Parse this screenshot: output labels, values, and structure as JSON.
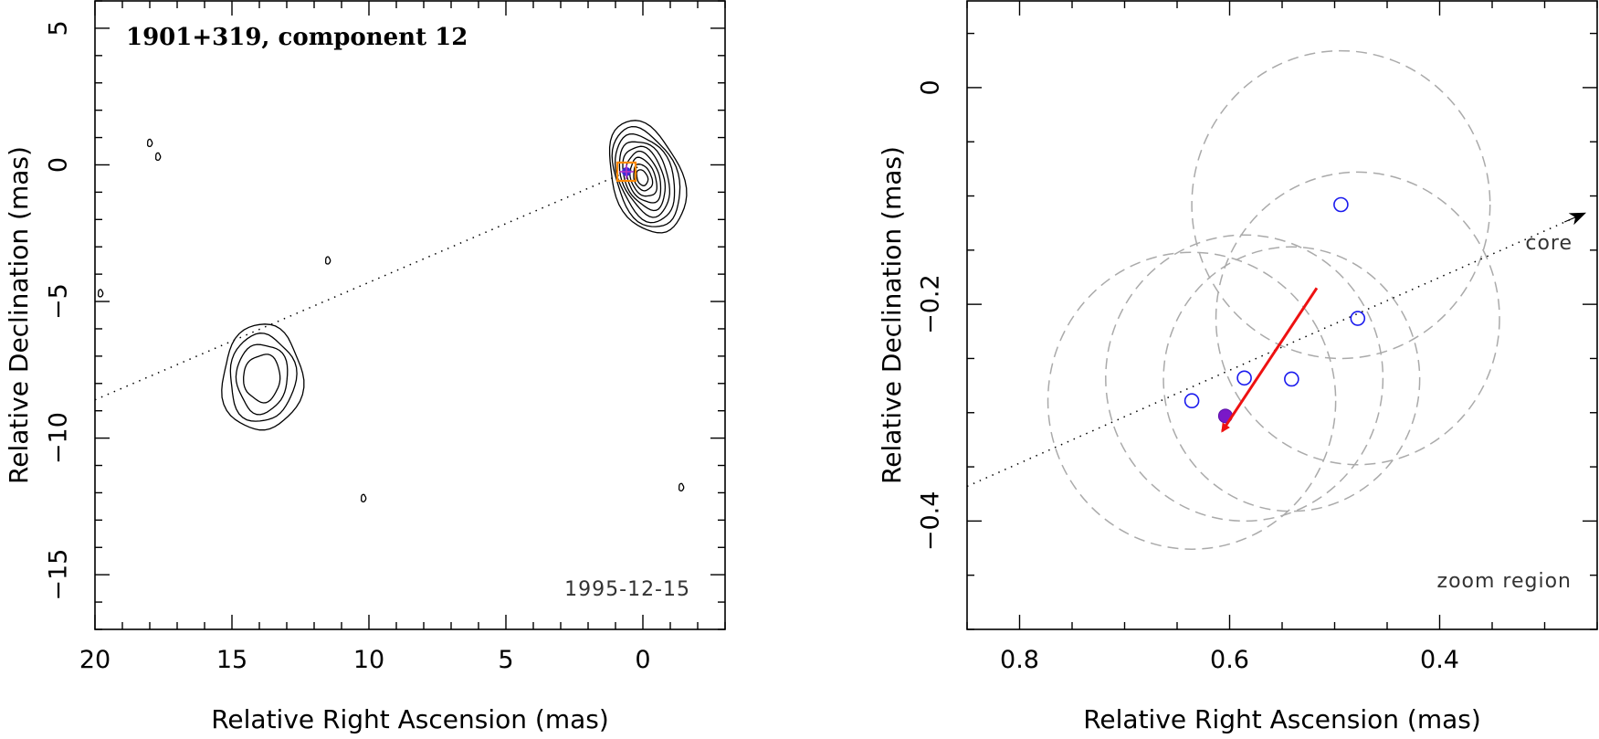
{
  "chart_data": [
    {
      "type": "scatter",
      "subtype": "contour-map",
      "title": "1901+319, component 12",
      "date_label": "1995-12-15",
      "xlabel": "Relative Right Ascension (mas)",
      "ylabel": "Relative Declination (mas)",
      "xlim": [
        20,
        -3
      ],
      "ylim": [
        -17,
        6
      ],
      "xticks": [
        20,
        15,
        10,
        5,
        0
      ],
      "yticks": [
        5,
        0,
        -5,
        -10,
        -15
      ],
      "contour_sources": [
        {
          "name": "core",
          "x": 0.0,
          "y": -0.2
        },
        {
          "name": "component-12-region",
          "x": 13.9,
          "y": -7.8
        }
      ],
      "component_marker": {
        "x": 0.6,
        "y": -0.25
      },
      "jet_axis_line": {
        "from": [
          20,
          -8.6
        ],
        "to": [
          0,
          0
        ]
      }
    },
    {
      "type": "scatter",
      "title": "",
      "note_label": "zoom region",
      "arrow_label": "core",
      "xlabel": "Relative Right Ascension (mas)",
      "ylabel": "Relative Declination (mas)",
      "xlim": [
        0.85,
        0.25
      ],
      "ylim": [
        -0.5,
        0.08
      ],
      "xticks": [
        0.8,
        0.6,
        0.4
      ],
      "yticks": [
        0,
        -0.2,
        -0.4
      ],
      "series": [
        {
          "name": "component positions",
          "x": [
            0.494,
            0.478,
            0.586,
            0.541,
            0.636
          ],
          "y": [
            -0.108,
            -0.213,
            -0.268,
            -0.269,
            -0.289
          ]
        },
        {
          "name": "mean position",
          "x": [
            0.604
          ],
          "y": [
            -0.303
          ]
        }
      ],
      "uncertainty_circles": [
        {
          "x": 0.494,
          "y": -0.108,
          "r": 0.142
        },
        {
          "x": 0.478,
          "y": -0.213,
          "r": 0.135
        },
        {
          "x": 0.586,
          "y": -0.268,
          "r": 0.132
        },
        {
          "x": 0.541,
          "y": -0.269,
          "r": 0.122
        },
        {
          "x": 0.636,
          "y": -0.289,
          "r": 0.137
        }
      ],
      "motion_vector": {
        "from": [
          0.517,
          -0.185
        ],
        "to": [
          0.607,
          -0.317
        ]
      },
      "jet_axis_line": {
        "from": [
          0.85,
          -0.368
        ],
        "to": [
          0.262,
          -0.116
        ]
      }
    }
  ]
}
